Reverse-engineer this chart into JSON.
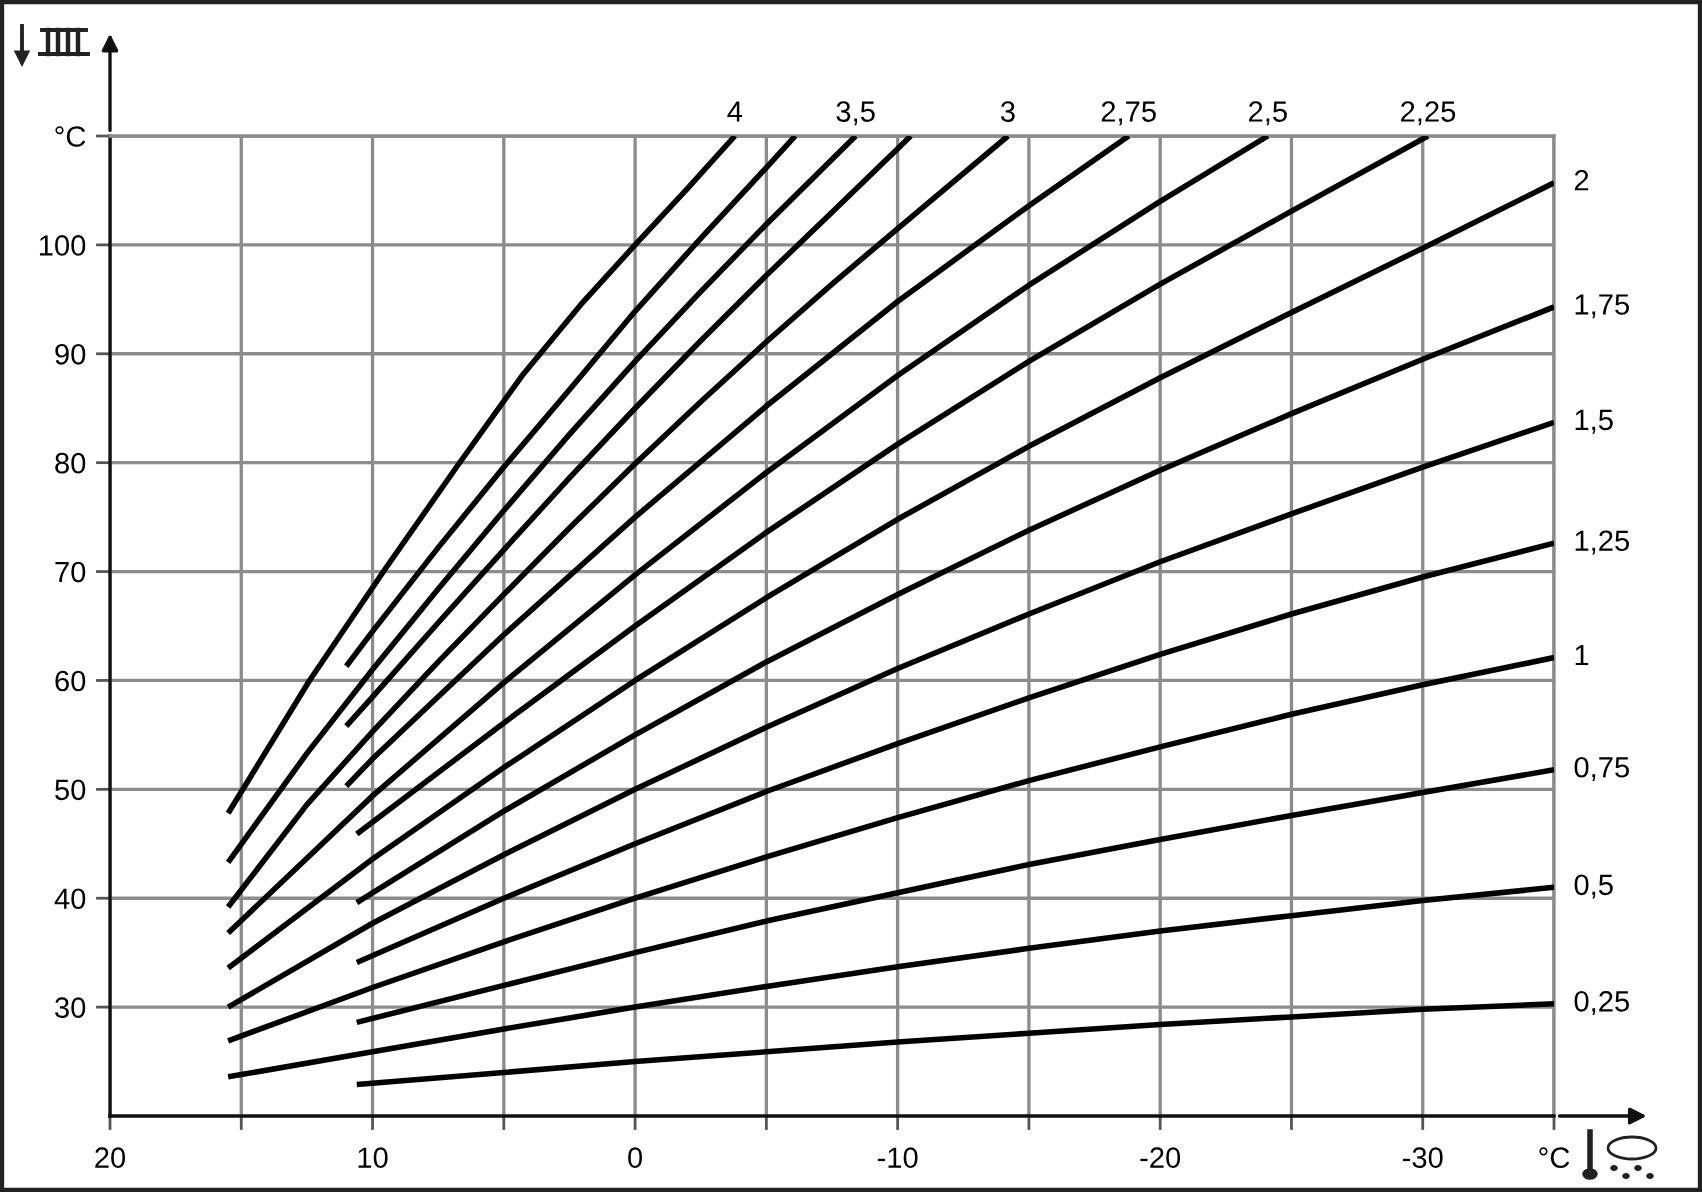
{
  "chart_data": {
    "type": "line",
    "xlim": [
      20,
      -35
    ],
    "ylim": [
      20,
      110
    ],
    "xticks": [
      20,
      {
        "value": 15,
        "label": null
      },
      10,
      {
        "value": 5,
        "label": null
      },
      0,
      {
        "value": -5,
        "label": null
      },
      -10,
      {
        "value": -15,
        "label": null
      },
      -20,
      {
        "value": -25,
        "label": null
      },
      -30,
      {
        "value": -35,
        "label": "°C"
      }
    ],
    "yticks": [
      30,
      40,
      50,
      60,
      70,
      80,
      90,
      100,
      {
        "value": 110,
        "label": "°C"
      }
    ],
    "grid": true,
    "series": [
      {
        "name": "4",
        "color": "#000000",
        "x": [
          15.5,
          12.4,
          9.5,
          6.8,
          4.3,
          2,
          0,
          -2,
          -3.8
        ],
        "values": [
          47.8,
          60,
          70.3,
          79.6,
          88,
          94.7,
          100,
          105.2,
          110
        ]
      },
      {
        "color": "#000000",
        "x": [
          11,
          10,
          7.5,
          5,
          2.5,
          0,
          -2.5,
          -5,
          -6.1
        ],
        "values": [
          61.3,
          64.5,
          72.2,
          79.6,
          86.7,
          93.9,
          100.6,
          107.1,
          110
        ]
      },
      {
        "name": "3,5",
        "color": "#000000",
        "x": [
          15.5,
          12.5,
          10,
          7.5,
          5,
          2.5,
          0,
          -2.5,
          -5,
          -8.4
        ],
        "values": [
          43.3,
          53.3,
          61,
          68.4,
          75.6,
          82.6,
          89.3,
          95.7,
          101.9,
          110
        ]
      },
      {
        "color": "#000000",
        "x": [
          11,
          10,
          7.5,
          5,
          2.5,
          0,
          -2.5,
          -5,
          -7.5,
          -10.5
        ],
        "values": [
          55.8,
          58.5,
          65.3,
          72,
          78.6,
          85,
          91.2,
          97.2,
          103,
          110
        ]
      },
      {
        "name": "3",
        "color": "#000000",
        "x": [
          15.5,
          12.5,
          10,
          7.5,
          5,
          2.5,
          0,
          -2.5,
          -5,
          -7.5,
          -10,
          -14.2
        ],
        "values": [
          39.2,
          48.6,
          55.3,
          61.7,
          67.9,
          74,
          79.9,
          85.6,
          91.1,
          96.4,
          101.5,
          110
        ]
      },
      {
        "name": "2,75",
        "color": "#000000",
        "x": [
          11,
          10,
          5,
          0,
          -5,
          -10,
          -15,
          -18.8
        ],
        "values": [
          50.3,
          52.8,
          64.2,
          75,
          85.2,
          94.8,
          103.6,
          110
        ]
      },
      {
        "name": "2,5",
        "color": "#000000",
        "x": [
          15.5,
          10,
          5,
          0,
          -5,
          -10,
          -15,
          -20,
          -24.1
        ],
        "values": [
          36.8,
          49.4,
          59.8,
          69.7,
          79.1,
          88,
          96.3,
          104,
          110
        ]
      },
      {
        "name": "2,25",
        "color": "#000000",
        "x": [
          10.6,
          5,
          0,
          -5,
          -10,
          -15,
          -20,
          -25,
          -30.2
        ],
        "values": [
          45.9,
          56.1,
          65,
          73.6,
          81.7,
          89.3,
          96.4,
          103.1,
          110
        ]
      },
      {
        "name": "2",
        "color": "#000000",
        "x": [
          15.5,
          10,
          5,
          0,
          -5,
          -10,
          -15,
          -20,
          -25,
          -30,
          -35
        ],
        "values": [
          33.6,
          43.6,
          52,
          60,
          67.6,
          74.8,
          81.5,
          87.8,
          93.8,
          99.7,
          105.7
        ]
      },
      {
        "name": "1,75",
        "color": "#000000",
        "x": [
          10.6,
          5,
          0,
          -5,
          -10,
          -15,
          -20,
          -25,
          -30,
          -35
        ],
        "values": [
          39.6,
          48,
          55,
          61.7,
          67.9,
          73.8,
          79.3,
          84.5,
          89.5,
          94.3
        ]
      },
      {
        "name": "1,5",
        "color": "#000000",
        "x": [
          15.5,
          10,
          5,
          0,
          -5,
          -10,
          -15,
          -20,
          -25,
          -30,
          -35
        ],
        "values": [
          30,
          37.7,
          44,
          50,
          55.7,
          61.1,
          66.1,
          70.9,
          75.3,
          79.6,
          83.7
        ]
      },
      {
        "name": "1,25",
        "color": "#000000",
        "x": [
          10.6,
          5,
          0,
          -5,
          -10,
          -15,
          -20,
          -25,
          -30,
          -35
        ],
        "values": [
          34.1,
          40,
          45,
          49.8,
          54.2,
          58.4,
          62.4,
          66.1,
          69.5,
          72.6
        ]
      },
      {
        "name": "1",
        "color": "#000000",
        "x": [
          15.5,
          10,
          5,
          0,
          -5,
          -10,
          -15,
          -20,
          -25,
          -30,
          -35
        ],
        "values": [
          26.9,
          31.8,
          36,
          40,
          43.8,
          47.4,
          50.8,
          53.9,
          56.9,
          59.6,
          62.1
        ]
      },
      {
        "name": "0,75",
        "color": "#000000",
        "x": [
          10.6,
          5,
          0,
          -5,
          -10,
          -15,
          -20,
          -25,
          -30,
          -35
        ],
        "values": [
          28.6,
          32,
          35,
          37.9,
          40.5,
          43.1,
          45.4,
          47.6,
          49.7,
          51.8
        ]
      },
      {
        "name": "0,5",
        "color": "#000000",
        "x": [
          15.5,
          10,
          5,
          0,
          -5,
          -10,
          -15,
          -20,
          -25,
          -30,
          -35
        ],
        "values": [
          23.6,
          25.9,
          28,
          30,
          31.9,
          33.7,
          35.4,
          37,
          38.4,
          39.8,
          41
        ]
      },
      {
        "name": "0,25",
        "color": "#000000",
        "x": [
          10.6,
          5,
          0,
          -5,
          -10,
          -15,
          -20,
          -25,
          -30,
          -35
        ],
        "values": [
          22.9,
          24,
          25,
          25.9,
          26.8,
          27.6,
          28.4,
          29.1,
          29.8,
          30.3
        ]
      }
    ]
  }
}
